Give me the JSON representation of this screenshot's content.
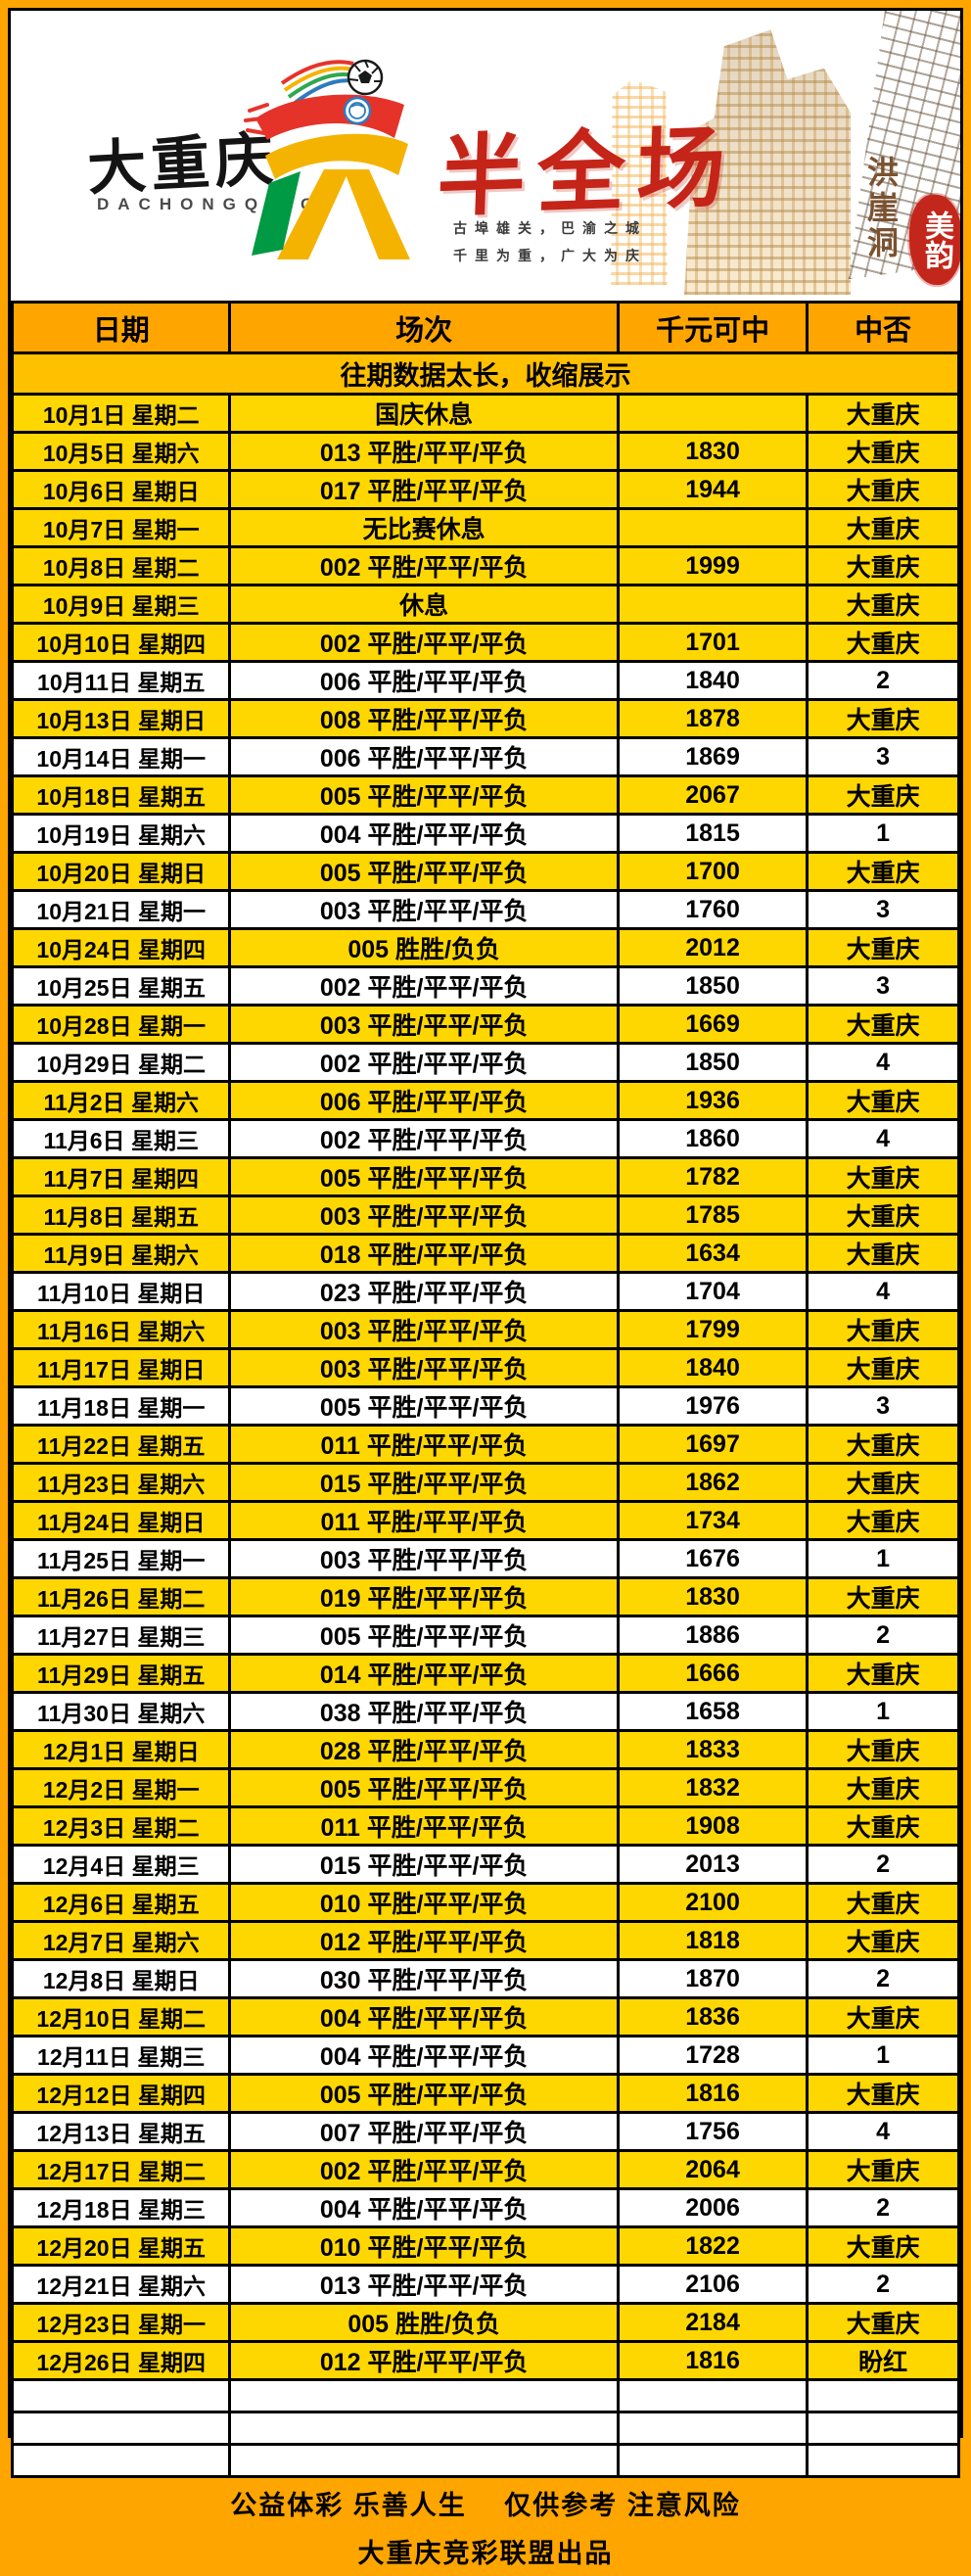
{
  "colors": {
    "frame_orange": "#FFA500",
    "header_row_orange": "#FFA500",
    "notice_row_gold": "#FFC000",
    "highlight_row_gold": "#FFD700",
    "plain_row_white": "#FFFFFF",
    "title_red": "#C52418",
    "seal_red": "#C3271B",
    "sketch_brown": "#7A5230",
    "mascot_yellow": "#F5B301",
    "mascot_green": "#009944",
    "mascot_red": "#E6332A",
    "mascot_blue": "#2E7BBF"
  },
  "header": {
    "brand_cn": "大重庆",
    "brand_en": "DACHONGQING",
    "title": "半全场",
    "slogan_line1": "古埠雄关，巴渝之城",
    "slogan_line2": "千里为重，广大为庆",
    "art_vertical_text": "洪崖洞",
    "seal_text": "美韵"
  },
  "table": {
    "columns": [
      "日期",
      "场次",
      "千元可中",
      "中否"
    ],
    "notice": "往期数据太长，收缩展示",
    "empty_rows": 3,
    "rows": [
      {
        "date": "10月1日 星期二",
        "match": "国庆休息",
        "prize": "",
        "result": "大重庆",
        "highlight": true
      },
      {
        "date": "10月5日 星期六",
        "match": "013 平胜/平平/平负",
        "prize": "1830",
        "result": "大重庆",
        "highlight": true
      },
      {
        "date": "10月6日 星期日",
        "match": "017 平胜/平平/平负",
        "prize": "1944",
        "result": "大重庆",
        "highlight": true
      },
      {
        "date": "10月7日 星期一",
        "match": "无比赛休息",
        "prize": "",
        "result": "大重庆",
        "highlight": true
      },
      {
        "date": "10月8日 星期二",
        "match": "002 平胜/平平/平负",
        "prize": "1999",
        "result": "大重庆",
        "highlight": true
      },
      {
        "date": "10月9日 星期三",
        "match": "休息",
        "prize": "",
        "result": "大重庆",
        "highlight": true
      },
      {
        "date": "10月10日 星期四",
        "match": "002 平胜/平平/平负",
        "prize": "1701",
        "result": "大重庆",
        "highlight": true
      },
      {
        "date": "10月11日 星期五",
        "match": "006 平胜/平平/平负",
        "prize": "1840",
        "result": "2",
        "highlight": false
      },
      {
        "date": "10月13日 星期日",
        "match": "008 平胜/平平/平负",
        "prize": "1878",
        "result": "大重庆",
        "highlight": true
      },
      {
        "date": "10月14日 星期一",
        "match": "006 平胜/平平/平负",
        "prize": "1869",
        "result": "3",
        "highlight": false
      },
      {
        "date": "10月18日 星期五",
        "match": "005 平胜/平平/平负",
        "prize": "2067",
        "result": "大重庆",
        "highlight": true
      },
      {
        "date": "10月19日 星期六",
        "match": "004 平胜/平平/平负",
        "prize": "1815",
        "result": "1",
        "highlight": false
      },
      {
        "date": "10月20日 星期日",
        "match": "005 平胜/平平/平负",
        "prize": "1700",
        "result": "大重庆",
        "highlight": true
      },
      {
        "date": "10月21日 星期一",
        "match": "003 平胜/平平/平负",
        "prize": "1760",
        "result": "3",
        "highlight": false
      },
      {
        "date": "10月24日 星期四",
        "match": "005 胜胜/负负",
        "prize": "2012",
        "result": "大重庆",
        "highlight": true
      },
      {
        "date": "10月25日 星期五",
        "match": "002 平胜/平平/平负",
        "prize": "1850",
        "result": "3",
        "highlight": false
      },
      {
        "date": "10月28日 星期一",
        "match": "003 平胜/平平/平负",
        "prize": "1669",
        "result": "大重庆",
        "highlight": true
      },
      {
        "date": "10月29日 星期二",
        "match": "002 平胜/平平/平负",
        "prize": "1850",
        "result": "4",
        "highlight": false
      },
      {
        "date": "11月2日 星期六",
        "match": "006 平胜/平平/平负",
        "prize": "1936",
        "result": "大重庆",
        "highlight": true
      },
      {
        "date": "11月6日 星期三",
        "match": "002 平胜/平平/平负",
        "prize": "1860",
        "result": "4",
        "highlight": false
      },
      {
        "date": "11月7日 星期四",
        "match": "005 平胜/平平/平负",
        "prize": "1782",
        "result": "大重庆",
        "highlight": true
      },
      {
        "date": "11月8日 星期五",
        "match": "003 平胜/平平/平负",
        "prize": "1785",
        "result": "大重庆",
        "highlight": true
      },
      {
        "date": "11月9日 星期六",
        "match": "018 平胜/平平/平负",
        "prize": "1634",
        "result": "大重庆",
        "highlight": true
      },
      {
        "date": "11月10日 星期日",
        "match": "023 平胜/平平/平负",
        "prize": "1704",
        "result": "4",
        "highlight": false
      },
      {
        "date": "11月16日 星期六",
        "match": "003 平胜/平平/平负",
        "prize": "1799",
        "result": "大重庆",
        "highlight": true
      },
      {
        "date": "11月17日 星期日",
        "match": "003 平胜/平平/平负",
        "prize": "1840",
        "result": "大重庆",
        "highlight": true
      },
      {
        "date": "11月18日 星期一",
        "match": "005 平胜/平平/平负",
        "prize": "1976",
        "result": "3",
        "highlight": false
      },
      {
        "date": "11月22日 星期五",
        "match": "011 平胜/平平/平负",
        "prize": "1697",
        "result": "大重庆",
        "highlight": true
      },
      {
        "date": "11月23日 星期六",
        "match": "015 平胜/平平/平负",
        "prize": "1862",
        "result": "大重庆",
        "highlight": true
      },
      {
        "date": "11月24日 星期日",
        "match": "011 平胜/平平/平负",
        "prize": "1734",
        "result": "大重庆",
        "highlight": true
      },
      {
        "date": "11月25日 星期一",
        "match": "003 平胜/平平/平负",
        "prize": "1676",
        "result": "1",
        "highlight": false
      },
      {
        "date": "11月26日 星期二",
        "match": "019 平胜/平平/平负",
        "prize": "1830",
        "result": "大重庆",
        "highlight": true
      },
      {
        "date": "11月27日 星期三",
        "match": "005 平胜/平平/平负",
        "prize": "1886",
        "result": "2",
        "highlight": false
      },
      {
        "date": "11月29日 星期五",
        "match": "014 平胜/平平/平负",
        "prize": "1666",
        "result": "大重庆",
        "highlight": true
      },
      {
        "date": "11月30日 星期六",
        "match": "038 平胜/平平/平负",
        "prize": "1658",
        "result": "1",
        "highlight": false
      },
      {
        "date": "12月1日 星期日",
        "match": "028 平胜/平平/平负",
        "prize": "1833",
        "result": "大重庆",
        "highlight": true
      },
      {
        "date": "12月2日 星期一",
        "match": "005 平胜/平平/平负",
        "prize": "1832",
        "result": "大重庆",
        "highlight": true
      },
      {
        "date": "12月3日 星期二",
        "match": "011 平胜/平平/平负",
        "prize": "1908",
        "result": "大重庆",
        "highlight": true
      },
      {
        "date": "12月4日 星期三",
        "match": "015 平胜/平平/平负",
        "prize": "2013",
        "result": "2",
        "highlight": false
      },
      {
        "date": "12月6日 星期五",
        "match": "010 平胜/平平/平负",
        "prize": "2100",
        "result": "大重庆",
        "highlight": true
      },
      {
        "date": "12月7日 星期六",
        "match": "012 平胜/平平/平负",
        "prize": "1818",
        "result": "大重庆",
        "highlight": true
      },
      {
        "date": "12月8日 星期日",
        "match": "030 平胜/平平/平负",
        "prize": "1870",
        "result": "2",
        "highlight": false
      },
      {
        "date": "12月10日 星期二",
        "match": "004 平胜/平平/平负",
        "prize": "1836",
        "result": "大重庆",
        "highlight": true
      },
      {
        "date": "12月11日 星期三",
        "match": "004 平胜/平平/平负",
        "prize": "1728",
        "result": "1",
        "highlight": false
      },
      {
        "date": "12月12日 星期四",
        "match": "005 平胜/平平/平负",
        "prize": "1816",
        "result": "大重庆",
        "highlight": true
      },
      {
        "date": "12月13日 星期五",
        "match": "007 平胜/平平/平负",
        "prize": "1756",
        "result": "4",
        "highlight": false
      },
      {
        "date": "12月17日 星期二",
        "match": "002 平胜/平平/平负",
        "prize": "2064",
        "result": "大重庆",
        "highlight": true
      },
      {
        "date": "12月18日 星期三",
        "match": "004 平胜/平平/平负",
        "prize": "2006",
        "result": "2",
        "highlight": false
      },
      {
        "date": "12月20日 星期五",
        "match": "010 平胜/平平/平负",
        "prize": "1822",
        "result": "大重庆",
        "highlight": true
      },
      {
        "date": "12月21日 星期六",
        "match": "013 平胜/平平/平负",
        "prize": "2106",
        "result": "2",
        "highlight": false
      },
      {
        "date": "12月23日 星期一",
        "match": "005 胜胜/负负",
        "prize": "2184",
        "result": "大重庆",
        "highlight": true
      },
      {
        "date": "12月26日 星期四",
        "match": "012 平胜/平平/平负",
        "prize": "1816",
        "result": "盼红",
        "highlight": true
      }
    ]
  },
  "footer": {
    "line1": "公益体彩 乐善人生　 仅供参考 注意风险",
    "line2": "大重庆竞彩联盟出品"
  }
}
